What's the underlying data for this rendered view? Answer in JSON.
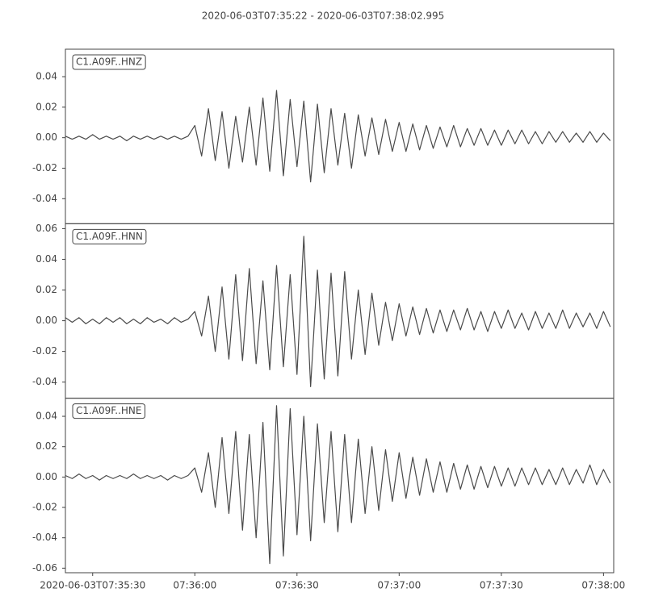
{
  "title": "2020-06-03T07:35:22  -  2020-06-03T07:38:02.995",
  "chart_data": [
    {
      "type": "line",
      "label": "C1.A09F..HNZ",
      "color": "#4a4a4a",
      "x": [
        27322,
        27324,
        27326,
        27328,
        27330,
        27332,
        27334,
        27336,
        27338,
        27340,
        27342,
        27344,
        27346,
        27348,
        27350,
        27352,
        27354,
        27356,
        27358,
        27360,
        27362,
        27364,
        27366,
        27368,
        27370,
        27372,
        27374,
        27376,
        27378,
        27380,
        27382,
        27384,
        27386,
        27388,
        27390,
        27392,
        27394,
        27396,
        27398,
        27400,
        27402,
        27404,
        27406,
        27408,
        27410,
        27412,
        27414,
        27416,
        27418,
        27420,
        27422,
        27424,
        27426,
        27428,
        27430,
        27432,
        27434,
        27436,
        27438,
        27440,
        27442,
        27444,
        27446,
        27448,
        27450,
        27452,
        27454,
        27456,
        27458,
        27460,
        27462,
        27464,
        27466,
        27468,
        27470,
        27472,
        27474,
        27476,
        27478,
        27480,
        27482
      ],
      "values": [
        0.001,
        -0.001,
        0.001,
        -0.001,
        0.002,
        -0.001,
        0.001,
        -0.001,
        0.001,
        -0.002,
        0.001,
        -0.001,
        0.001,
        -0.001,
        0.001,
        -0.001,
        0.001,
        -0.001,
        0.001,
        0.008,
        -0.012,
        0.019,
        -0.015,
        0.017,
        -0.02,
        0.014,
        -0.016,
        0.02,
        -0.018,
        0.026,
        -0.022,
        0.031,
        -0.025,
        0.025,
        -0.019,
        0.024,
        -0.029,
        0.022,
        -0.023,
        0.019,
        -0.018,
        0.016,
        -0.02,
        0.015,
        -0.012,
        0.013,
        -0.011,
        0.012,
        -0.009,
        0.01,
        -0.009,
        0.009,
        -0.008,
        0.008,
        -0.007,
        0.007,
        -0.006,
        0.008,
        -0.006,
        0.006,
        -0.005,
        0.006,
        -0.005,
        0.005,
        -0.005,
        0.005,
        -0.004,
        0.005,
        -0.004,
        0.004,
        -0.004,
        0.004,
        -0.003,
        0.004,
        -0.003,
        0.003,
        -0.003,
        0.004,
        -0.003,
        0.003,
        -0.002
      ],
      "xlim": [
        27322,
        27482.995
      ],
      "ylim": [
        -0.0564,
        0.058
      ],
      "yticks": [
        -0.04,
        -0.02,
        {
          "value": 0,
          "label": "0.00"
        },
        0.02,
        0.04
      ]
    },
    {
      "type": "line",
      "label": "C1.A09F..HNN",
      "color": "#4a4a4a",
      "x": [
        27322,
        27324,
        27326,
        27328,
        27330,
        27332,
        27334,
        27336,
        27338,
        27340,
        27342,
        27344,
        27346,
        27348,
        27350,
        27352,
        27354,
        27356,
        27358,
        27360,
        27362,
        27364,
        27366,
        27368,
        27370,
        27372,
        27374,
        27376,
        27378,
        27380,
        27382,
        27384,
        27386,
        27388,
        27390,
        27392,
        27394,
        27396,
        27398,
        27400,
        27402,
        27404,
        27406,
        27408,
        27410,
        27412,
        27414,
        27416,
        27418,
        27420,
        27422,
        27424,
        27426,
        27428,
        27430,
        27432,
        27434,
        27436,
        27438,
        27440,
        27442,
        27444,
        27446,
        27448,
        27450,
        27452,
        27454,
        27456,
        27458,
        27460,
        27462,
        27464,
        27466,
        27468,
        27470,
        27472,
        27474,
        27476,
        27478,
        27480,
        27482
      ],
      "values": [
        0.002,
        -0.001,
        0.002,
        -0.002,
        0.001,
        -0.002,
        0.002,
        -0.001,
        0.002,
        -0.002,
        0.001,
        -0.002,
        0.002,
        -0.001,
        0.001,
        -0.002,
        0.002,
        -0.001,
        0.001,
        0.006,
        -0.01,
        0.016,
        -0.02,
        0.022,
        -0.025,
        0.03,
        -0.026,
        0.034,
        -0.028,
        0.026,
        -0.032,
        0.036,
        -0.03,
        0.03,
        -0.035,
        0.055,
        -0.043,
        0.033,
        -0.038,
        0.031,
        -0.036,
        0.032,
        -0.025,
        0.02,
        -0.022,
        0.018,
        -0.016,
        0.012,
        -0.013,
        0.011,
        -0.01,
        0.009,
        -0.009,
        0.008,
        -0.008,
        0.007,
        -0.007,
        0.007,
        -0.006,
        0.008,
        -0.006,
        0.006,
        -0.007,
        0.006,
        -0.005,
        0.007,
        -0.005,
        0.005,
        -0.006,
        0.006,
        -0.005,
        0.005,
        -0.005,
        0.007,
        -0.005,
        0.005,
        -0.004,
        0.005,
        -0.005,
        0.006,
        -0.004
      ],
      "xlim": [
        27322,
        27482.995
      ],
      "ylim": [
        -0.0505,
        0.0632
      ],
      "yticks": [
        -0.04,
        -0.02,
        {
          "value": 0,
          "label": "0.00"
        },
        0.02,
        0.04,
        0.06
      ]
    },
    {
      "type": "line",
      "label": "C1.A09F..HNE",
      "color": "#4a4a4a",
      "x": [
        27322,
        27324,
        27326,
        27328,
        27330,
        27332,
        27334,
        27336,
        27338,
        27340,
        27342,
        27344,
        27346,
        27348,
        27350,
        27352,
        27354,
        27356,
        27358,
        27360,
        27362,
        27364,
        27366,
        27368,
        27370,
        27372,
        27374,
        27376,
        27378,
        27380,
        27382,
        27384,
        27386,
        27388,
        27390,
        27392,
        27394,
        27396,
        27398,
        27400,
        27402,
        27404,
        27406,
        27408,
        27410,
        27412,
        27414,
        27416,
        27418,
        27420,
        27422,
        27424,
        27426,
        27428,
        27430,
        27432,
        27434,
        27436,
        27438,
        27440,
        27442,
        27444,
        27446,
        27448,
        27450,
        27452,
        27454,
        27456,
        27458,
        27460,
        27462,
        27464,
        27466,
        27468,
        27470,
        27472,
        27474,
        27476,
        27478,
        27480,
        27482
      ],
      "values": [
        0.001,
        -0.001,
        0.002,
        -0.001,
        0.001,
        -0.002,
        0.001,
        -0.001,
        0.001,
        -0.001,
        0.002,
        -0.001,
        0.001,
        -0.001,
        0.001,
        -0.002,
        0.001,
        -0.001,
        0.001,
        0.006,
        -0.01,
        0.016,
        -0.02,
        0.026,
        -0.024,
        0.03,
        -0.035,
        0.028,
        -0.04,
        0.036,
        -0.057,
        0.047,
        -0.052,
        0.045,
        -0.038,
        0.04,
        -0.042,
        0.035,
        -0.03,
        0.03,
        -0.036,
        0.028,
        -0.03,
        0.025,
        -0.024,
        0.02,
        -0.022,
        0.018,
        -0.016,
        0.016,
        -0.014,
        0.013,
        -0.012,
        0.012,
        -0.01,
        0.01,
        -0.01,
        0.009,
        -0.008,
        0.008,
        -0.008,
        0.007,
        -0.007,
        0.007,
        -0.006,
        0.006,
        -0.006,
        0.006,
        -0.005,
        0.006,
        -0.005,
        0.005,
        -0.005,
        0.006,
        -0.005,
        0.005,
        -0.004,
        0.008,
        -0.005,
        0.005,
        -0.004
      ],
      "xlim": [
        27322,
        27482.995
      ],
      "ylim": [
        -0.063,
        0.0519
      ],
      "yticks": [
        -0.06,
        -0.04,
        -0.02,
        {
          "value": 0,
          "label": "0.00"
        },
        0.02,
        0.04
      ],
      "xticks": [
        {
          "value": 27330,
          "label": "2020-06-03T07:35:30"
        },
        {
          "value": 27360,
          "label": "07:36:00"
        },
        {
          "value": 27390,
          "label": "07:36:30"
        },
        {
          "value": 27420,
          "label": "07:37:00"
        },
        {
          "value": 27450,
          "label": "07:37:30"
        },
        {
          "value": 27480,
          "label": "07:38:00"
        }
      ]
    }
  ]
}
